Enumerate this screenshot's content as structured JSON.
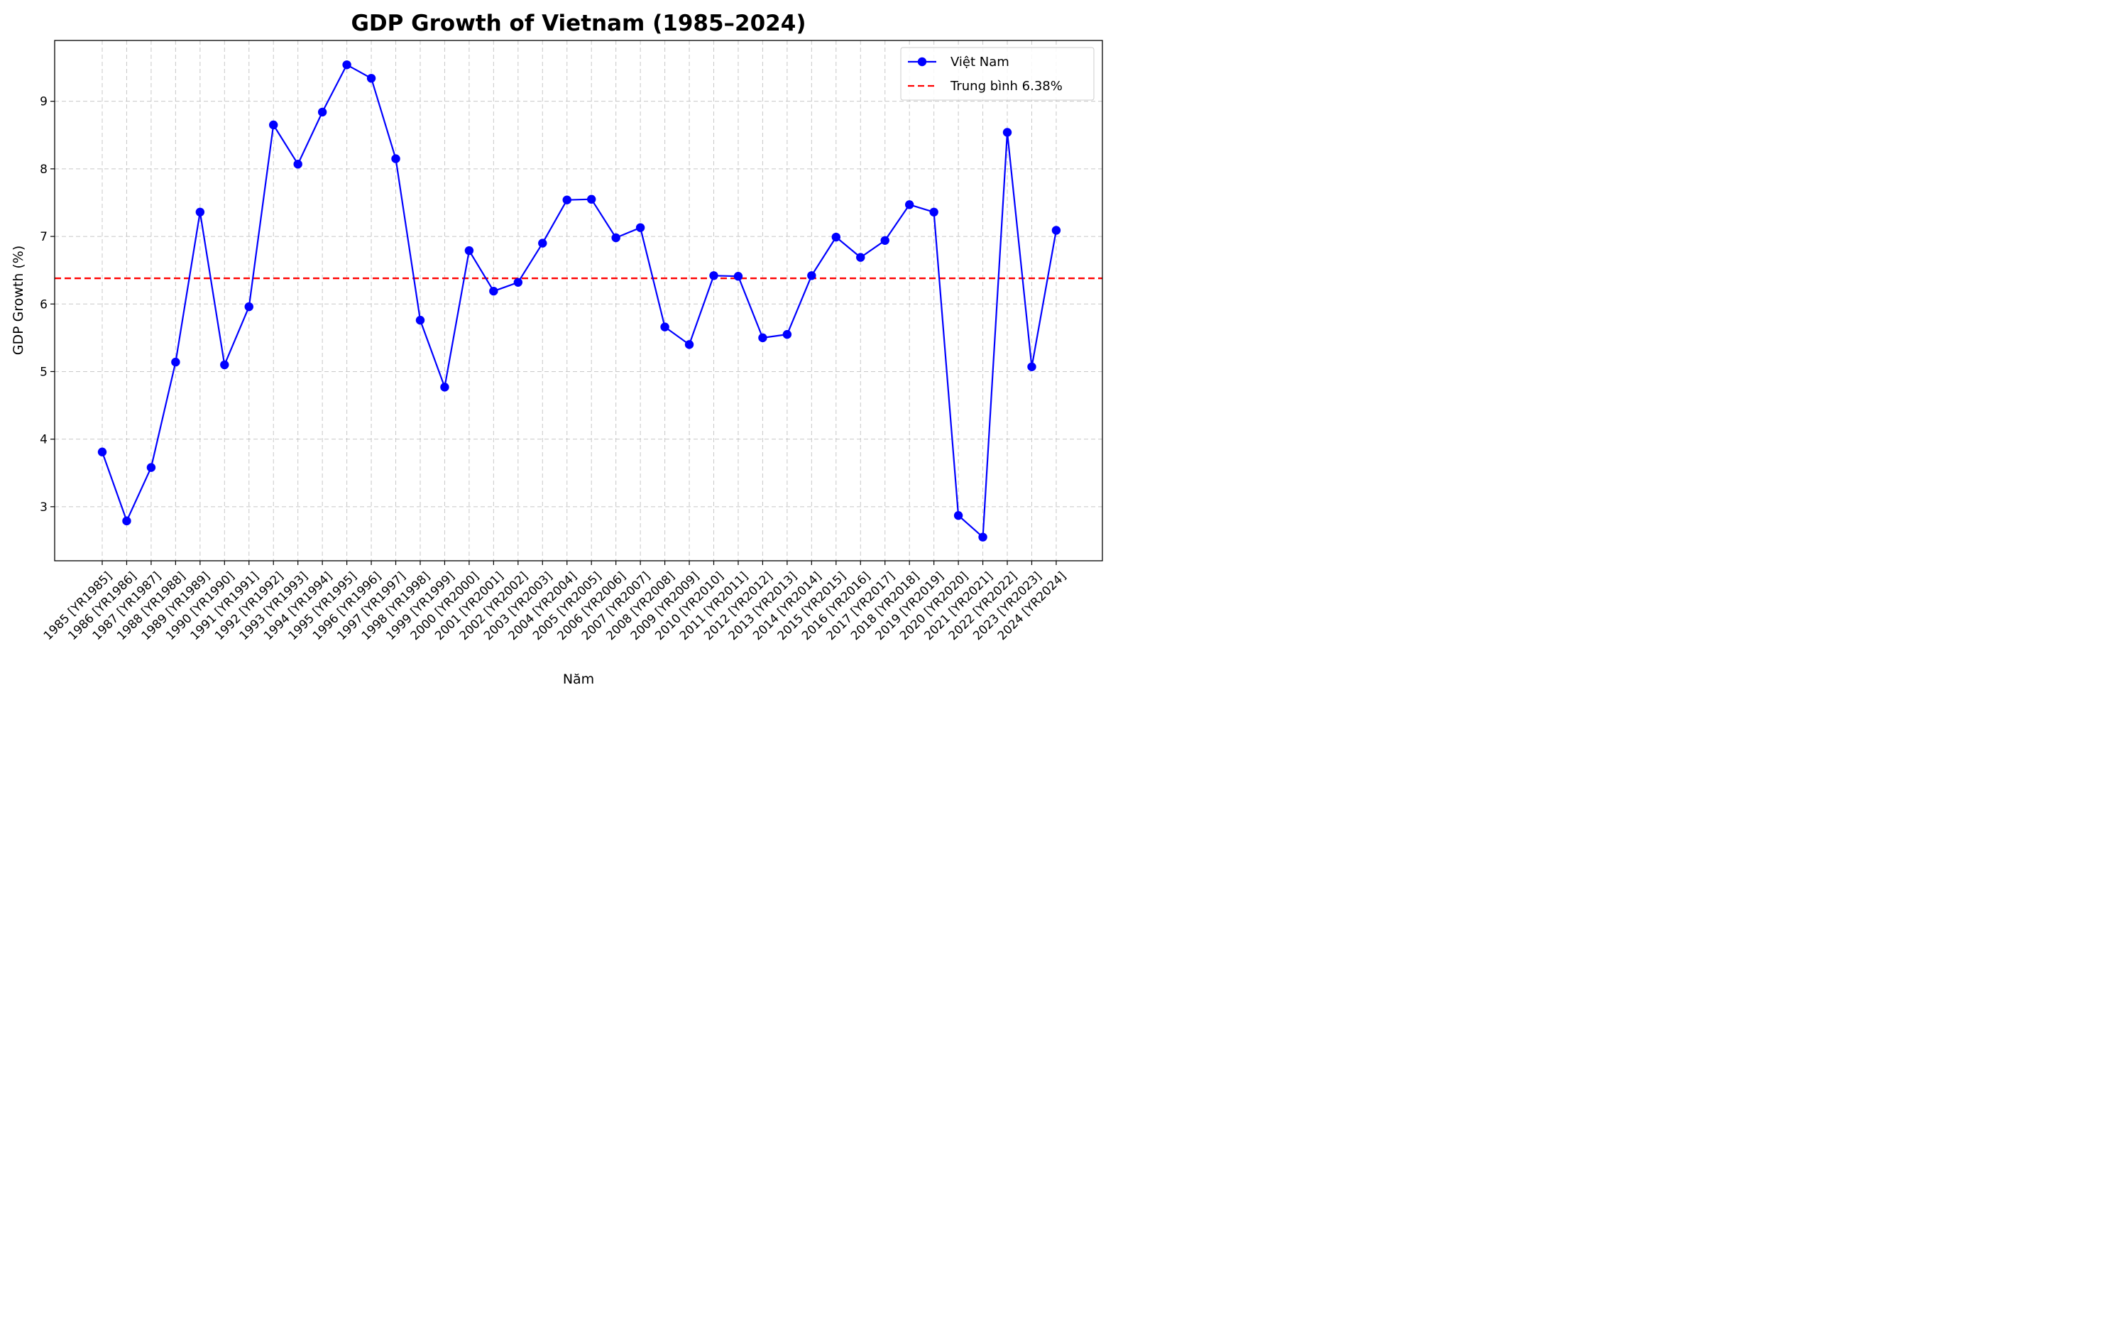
{
  "chart_data": {
    "type": "line",
    "title": "GDP Growth of Vietnam (1985–2024)",
    "xlabel": "Năm",
    "ylabel": "GDP Growth (%)",
    "categories": [
      "1985 [YR1985]",
      "1986 [YR1986]",
      "1987 [YR1987]",
      "1988 [YR1988]",
      "1989 [YR1989]",
      "1990 [YR1990]",
      "1991 [YR1991]",
      "1992 [YR1992]",
      "1993 [YR1993]",
      "1994 [YR1994]",
      "1995 [YR1995]",
      "1996 [YR1996]",
      "1997 [YR1997]",
      "1998 [YR1998]",
      "1999 [YR1999]",
      "2000 [YR2000]",
      "2001 [YR2001]",
      "2002 [YR2002]",
      "2003 [YR2003]",
      "2004 [YR2004]",
      "2005 [YR2005]",
      "2006 [YR2006]",
      "2007 [YR2007]",
      "2008 [YR2008]",
      "2009 [YR2009]",
      "2010 [YR2010]",
      "2011 [YR2011]",
      "2012 [YR2012]",
      "2013 [YR2013]",
      "2014 [YR2014]",
      "2015 [YR2015]",
      "2016 [YR2016]",
      "2017 [YR2017]",
      "2018 [YR2018]",
      "2019 [YR2019]",
      "2020 [YR2020]",
      "2021 [YR2021]",
      "2022 [YR2022]",
      "2023 [YR2023]",
      "2024 [YR2024]"
    ],
    "series": [
      {
        "name": "Việt Nam",
        "color": "#0000ff",
        "marker": "circle",
        "values": [
          3.81,
          2.79,
          3.58,
          5.14,
          7.36,
          5.1,
          5.96,
          8.65,
          8.07,
          8.84,
          9.54,
          9.34,
          8.15,
          5.76,
          4.77,
          6.79,
          6.19,
          6.32,
          6.9,
          7.54,
          7.55,
          6.98,
          7.13,
          5.66,
          5.4,
          6.42,
          6.41,
          5.5,
          5.55,
          6.42,
          6.99,
          6.69,
          6.94,
          7.47,
          7.36,
          2.87,
          2.55,
          8.54,
          5.07,
          7.09
        ]
      }
    ],
    "reference_lines": [
      {
        "name": "Trung bình 6.38%",
        "value": 6.38,
        "color": "#ff0000",
        "style": "dashed"
      }
    ],
    "yticks": [
      3,
      4,
      5,
      6,
      7,
      8,
      9
    ],
    "ylim": [
      2.2,
      9.9
    ],
    "grid": true,
    "legend": "top-right"
  }
}
